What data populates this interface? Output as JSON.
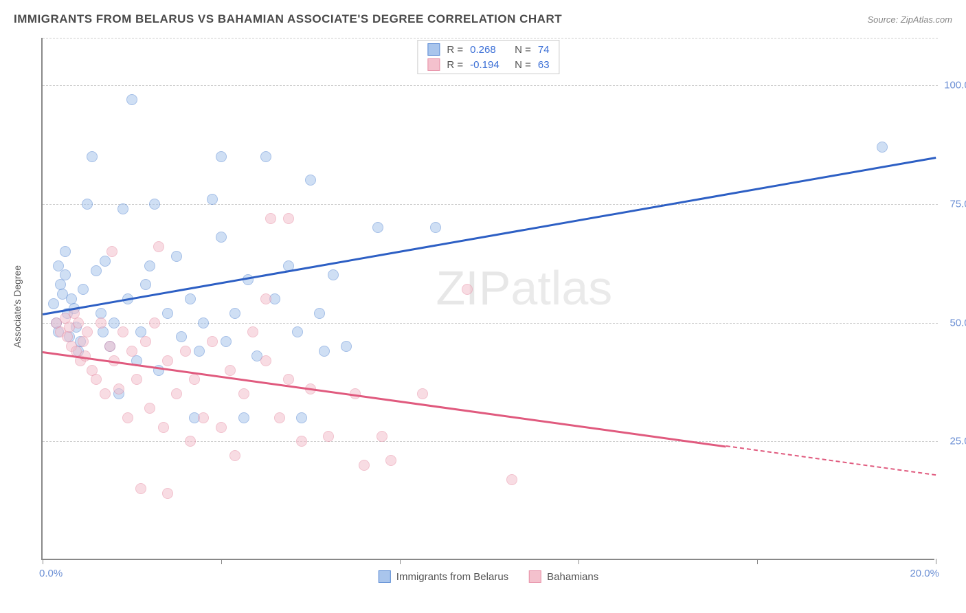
{
  "title": "IMMIGRANTS FROM BELARUS VS BAHAMIAN ASSOCIATE'S DEGREE CORRELATION CHART",
  "source": "Source: ZipAtlas.com",
  "ylabel": "Associate's Degree",
  "watermark_a": "ZIP",
  "watermark_b": "atlas",
  "chart": {
    "type": "scatter",
    "xlim": [
      0,
      20
    ],
    "ylim": [
      0,
      110
    ],
    "x_ticks": [
      0,
      4,
      8,
      12,
      16,
      20
    ],
    "x_tick_labels": {
      "0": "0.0%",
      "20": "20.0%"
    },
    "y_grid": [
      25,
      50,
      75,
      100
    ],
    "y_tick_labels": {
      "25": "25.0%",
      "50": "50.0%",
      "75": "75.0%",
      "100": "100.0%"
    },
    "background_color": "#ffffff",
    "grid_color": "#cccccc",
    "axis_color": "#888888",
    "tick_label_color": "#6b8fd4",
    "series": [
      {
        "name": "Immigrants from Belarus",
        "fill": "#a9c5ec",
        "stroke": "#5b8bd4",
        "trend_color": "#2d5fc4",
        "r": "0.268",
        "n": "74",
        "trend": {
          "x1": 0,
          "y1": 52,
          "x2": 20,
          "y2": 85,
          "dash_from_x": null
        },
        "points": [
          [
            0.25,
            54
          ],
          [
            0.3,
            50
          ],
          [
            0.35,
            48
          ],
          [
            0.4,
            58
          ],
          [
            0.45,
            56
          ],
          [
            0.5,
            60
          ],
          [
            0.55,
            52
          ],
          [
            0.35,
            62
          ],
          [
            0.6,
            47
          ],
          [
            0.65,
            55
          ],
          [
            0.7,
            53
          ],
          [
            0.75,
            49
          ],
          [
            0.8,
            44
          ],
          [
            0.85,
            46
          ],
          [
            0.9,
            57
          ],
          [
            0.5,
            65
          ],
          [
            1.0,
            75
          ],
          [
            1.1,
            85
          ],
          [
            1.2,
            61
          ],
          [
            1.3,
            52
          ],
          [
            1.35,
            48
          ],
          [
            1.4,
            63
          ],
          [
            1.5,
            45
          ],
          [
            1.6,
            50
          ],
          [
            1.7,
            35
          ],
          [
            1.8,
            74
          ],
          [
            1.9,
            55
          ],
          [
            2.0,
            97
          ],
          [
            2.1,
            42
          ],
          [
            2.2,
            48
          ],
          [
            2.3,
            58
          ],
          [
            2.4,
            62
          ],
          [
            2.5,
            75
          ],
          [
            2.6,
            40
          ],
          [
            2.8,
            52
          ],
          [
            3.0,
            64
          ],
          [
            3.1,
            47
          ],
          [
            3.3,
            55
          ],
          [
            3.4,
            30
          ],
          [
            3.5,
            44
          ],
          [
            3.6,
            50
          ],
          [
            3.8,
            76
          ],
          [
            4.0,
            68
          ],
          [
            4.0,
            85
          ],
          [
            4.1,
            46
          ],
          [
            4.3,
            52
          ],
          [
            4.5,
            30
          ],
          [
            4.6,
            59
          ],
          [
            4.8,
            43
          ],
          [
            5.0,
            85
          ],
          [
            5.2,
            55
          ],
          [
            5.5,
            62
          ],
          [
            5.7,
            48
          ],
          [
            5.8,
            30
          ],
          [
            6.0,
            80
          ],
          [
            6.2,
            52
          ],
          [
            6.3,
            44
          ],
          [
            6.5,
            60
          ],
          [
            6.8,
            45
          ],
          [
            7.5,
            70
          ],
          [
            8.8,
            70
          ],
          [
            18.8,
            87
          ]
        ]
      },
      {
        "name": "Bahamians",
        "fill": "#f4c1cd",
        "stroke": "#e78fa6",
        "trend_color": "#e05a7e",
        "r": "-0.194",
        "n": "63",
        "trend": {
          "x1": 0,
          "y1": 44,
          "x2": 20,
          "y2": 18,
          "dash_from_x": 15.3
        },
        "points": [
          [
            0.3,
            50
          ],
          [
            0.4,
            48
          ],
          [
            0.5,
            51
          ],
          [
            0.55,
            47
          ],
          [
            0.6,
            49
          ],
          [
            0.65,
            45
          ],
          [
            0.7,
            52
          ],
          [
            0.75,
            44
          ],
          [
            0.8,
            50
          ],
          [
            0.85,
            42
          ],
          [
            0.9,
            46
          ],
          [
            0.95,
            43
          ],
          [
            1.0,
            48
          ],
          [
            1.1,
            40
          ],
          [
            1.2,
            38
          ],
          [
            1.3,
            50
          ],
          [
            1.4,
            35
          ],
          [
            1.5,
            45
          ],
          [
            1.55,
            65
          ],
          [
            1.6,
            42
          ],
          [
            1.7,
            36
          ],
          [
            1.8,
            48
          ],
          [
            1.9,
            30
          ],
          [
            2.0,
            44
          ],
          [
            2.1,
            38
          ],
          [
            2.2,
            15
          ],
          [
            2.3,
            46
          ],
          [
            2.4,
            32
          ],
          [
            2.5,
            50
          ],
          [
            2.6,
            66
          ],
          [
            2.7,
            28
          ],
          [
            2.8,
            42
          ],
          [
            2.8,
            14
          ],
          [
            3.0,
            35
          ],
          [
            3.2,
            44
          ],
          [
            3.3,
            25
          ],
          [
            3.4,
            38
          ],
          [
            3.6,
            30
          ],
          [
            3.8,
            46
          ],
          [
            4.0,
            28
          ],
          [
            4.2,
            40
          ],
          [
            4.3,
            22
          ],
          [
            4.5,
            35
          ],
          [
            4.7,
            48
          ],
          [
            5.0,
            42
          ],
          [
            5.0,
            55
          ],
          [
            5.1,
            72
          ],
          [
            5.3,
            30
          ],
          [
            5.5,
            38
          ],
          [
            5.8,
            25
          ],
          [
            5.5,
            72
          ],
          [
            6.0,
            36
          ],
          [
            6.4,
            26
          ],
          [
            7.0,
            35
          ],
          [
            7.2,
            20
          ],
          [
            7.6,
            26
          ],
          [
            7.8,
            21
          ],
          [
            8.5,
            35
          ],
          [
            9.5,
            57
          ],
          [
            10.5,
            17
          ]
        ]
      }
    ]
  },
  "legend_bottom": [
    {
      "label": "Immigrants from Belarus",
      "fill": "#a9c5ec",
      "stroke": "#5b8bd4"
    },
    {
      "label": "Bahamians",
      "fill": "#f4c1cd",
      "stroke": "#e78fa6"
    }
  ]
}
